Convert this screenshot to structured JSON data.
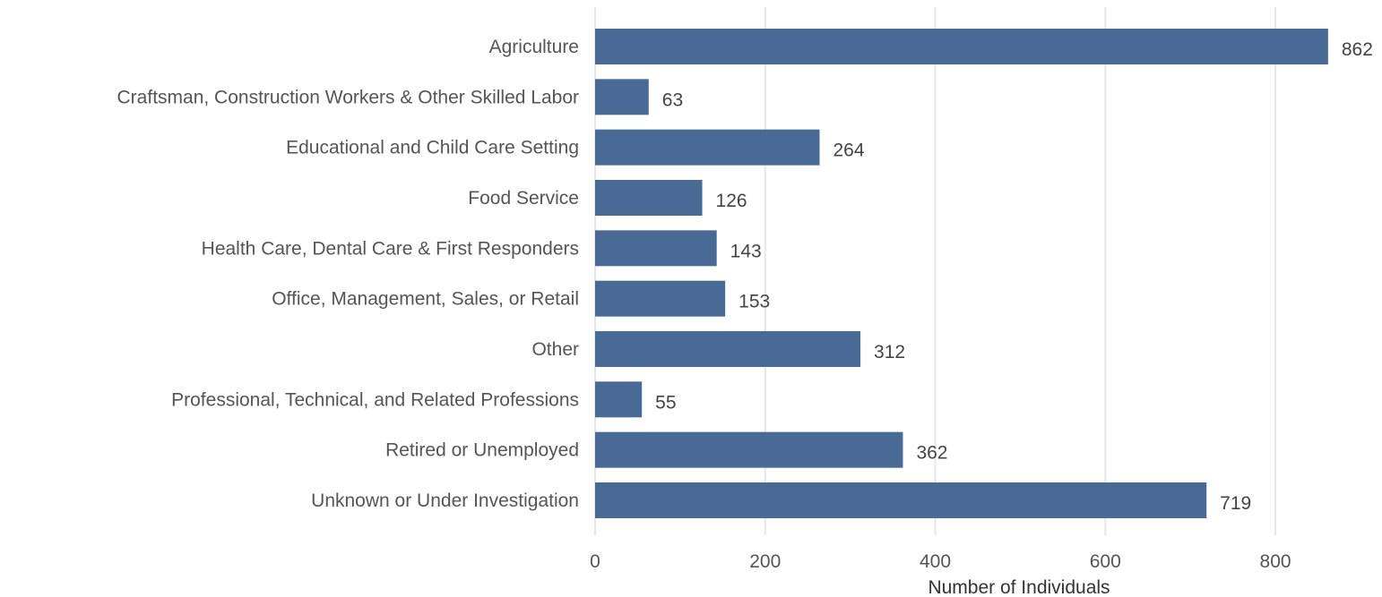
{
  "chart_data": {
    "type": "bar",
    "orientation": "horizontal",
    "categories": [
      "Agriculture",
      "Craftsman, Construction Workers & Other Skilled Labor",
      "Educational and Child Care Setting",
      "Food Service",
      "Health Care, Dental Care & First Responders",
      "Office, Management, Sales, or Retail",
      "Other",
      "Professional, Technical, and Related Professions",
      "Retired or Unemployed",
      "Unknown or Under Investigation"
    ],
    "values": [
      862,
      63,
      264,
      126,
      143,
      153,
      312,
      55,
      362,
      719
    ],
    "xlabel": "Number of Individuals",
    "ylabel": "",
    "xlim": [
      0,
      900
    ],
    "x_ticks": [
      0,
      200,
      400,
      600,
      800
    ],
    "grid": "vertical",
    "legend": "none",
    "bar_color": "#4a6a96"
  }
}
